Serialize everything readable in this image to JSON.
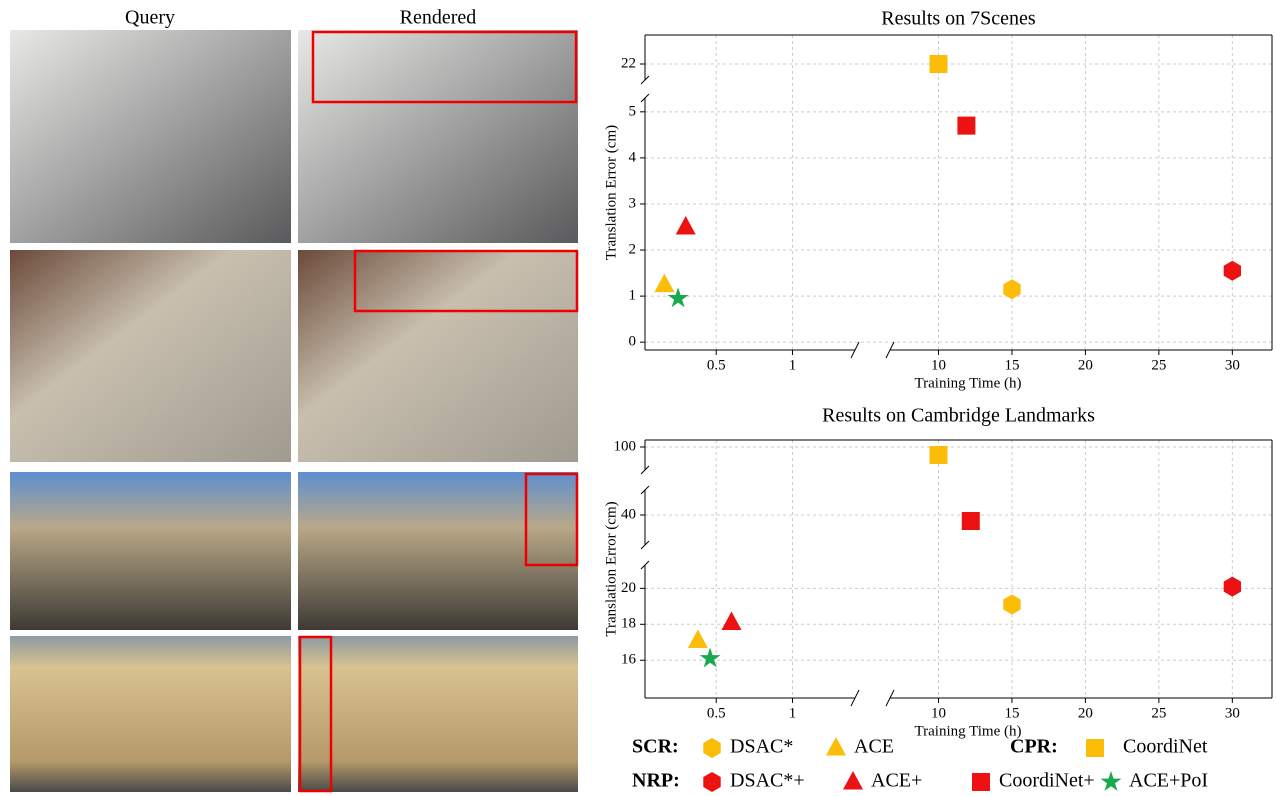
{
  "images": {
    "headers": [
      "Query",
      "Rendered"
    ]
  },
  "chart_data": [
    {
      "type": "scatter",
      "title": "Results on 7Scenes",
      "xlabel": "Training Time (h)",
      "ylabel": "Translation Error (cm)",
      "xlim": [
        [
          0.033,
          1.41
        ],
        [
          6.7,
          32.7
        ]
      ],
      "xticks": [
        [
          0.5,
          1
        ],
        [
          10,
          15,
          20,
          25,
          30
        ]
      ],
      "ylim": [
        [
          -0.17,
          5.3
        ],
        [
          21.6,
          22.725
        ]
      ],
      "yticks": [
        [
          0,
          1,
          2,
          3,
          4,
          5
        ],
        [
          22
        ]
      ],
      "grid": true,
      "series": [
        {
          "name": "DSAC*",
          "group": "SCR:",
          "marker": "hexagon",
          "color": "#fbbd08",
          "x": [
            15
          ],
          "values": [
            1.15
          ]
        },
        {
          "name": "ACE",
          "group": "SCR:",
          "marker": "triangle",
          "color": "#fbbd08",
          "x": [
            0.16
          ],
          "values": [
            1.25
          ]
        },
        {
          "name": "CoordiNet",
          "group": "CPR:",
          "marker": "square",
          "color": "#fbbd08",
          "x": [
            10
          ],
          "values": [
            22
          ]
        },
        {
          "name": "DSAC*+",
          "group": "NRP:",
          "marker": "hexagon",
          "color": "#ee1111",
          "x": [
            30
          ],
          "values": [
            1.55
          ]
        },
        {
          "name": "ACE+",
          "group": "NRP:",
          "marker": "triangle",
          "color": "#ee1111",
          "x": [
            0.3
          ],
          "values": [
            2.5
          ]
        },
        {
          "name": "CoordiNet+",
          "group": "NRP:",
          "marker": "square",
          "color": "#ee1111",
          "x": [
            11.9
          ],
          "values": [
            4.7
          ]
        },
        {
          "name": "ACE+PoI",
          "group": "NRP:",
          "marker": "star",
          "color": "#1aa84f",
          "x": [
            0.25
          ],
          "values": [
            0.95
          ]
        }
      ]
    },
    {
      "type": "scatter",
      "title": "Results on Cambridge Landmarks",
      "xlabel": "Training Time (h)",
      "ylabel": "Translation Error (cm)",
      "xlim": [
        [
          0.033,
          1.41
        ],
        [
          6.7,
          32.7
        ]
      ],
      "xticks": [
        [
          0.5,
          1
        ],
        [
          10,
          15,
          20,
          25,
          30
        ]
      ],
      "ylim": [
        [
          13.9,
          21.3
        ],
        [
          25,
          52.5
        ],
        [
          88.5,
          103.5
        ]
      ],
      "yticks": [
        [
          16,
          18,
          20
        ],
        [
          40
        ],
        [
          100
        ]
      ],
      "grid": true,
      "series": [
        {
          "marker": "hexagon",
          "color": "#fbbd08",
          "x": [
            15
          ],
          "values": [
            19.1
          ]
        },
        {
          "marker": "triangle",
          "color": "#fbbd08",
          "x": [
            0.38
          ],
          "values": [
            17.1
          ]
        },
        {
          "marker": "square",
          "color": "#fbbd08",
          "x": [
            10
          ],
          "values": [
            96
          ]
        },
        {
          "marker": "hexagon",
          "color": "#ee1111",
          "x": [
            30
          ],
          "values": [
            20.1
          ]
        },
        {
          "marker": "triangle",
          "color": "#ee1111",
          "x": [
            0.6
          ],
          "values": [
            18.1
          ]
        },
        {
          "marker": "square",
          "color": "#ee1111",
          "x": [
            12.2
          ],
          "values": [
            37
          ]
        },
        {
          "marker": "star",
          "color": "#1aa84f",
          "x": [
            0.46
          ],
          "values": [
            16.1
          ]
        }
      ]
    }
  ]
}
